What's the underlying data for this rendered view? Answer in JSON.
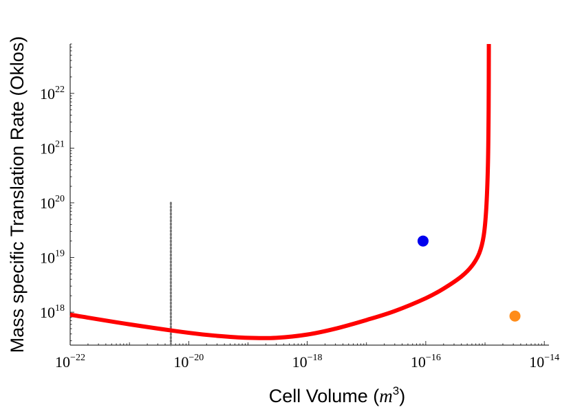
{
  "chart_data": {
    "type": "line",
    "xscale": "log",
    "yscale": "log",
    "xlim": [
      1e-22,
      1.2e-14
    ],
    "ylim": [
      2.5e+17,
      8e+22
    ],
    "xlabel": {
      "main": "Cell Volume (",
      "italic": "m",
      "sup": "3",
      "close": ")"
    },
    "ylabel": "Mass specific Translation Rate (Oklos)",
    "xticks": [
      {
        "base": "10",
        "exp": "−22",
        "value": 1e-22
      },
      {
        "base": "10",
        "exp": "−20",
        "value": 1e-20
      },
      {
        "base": "10",
        "exp": "−18",
        "value": 1e-18
      },
      {
        "base": "10",
        "exp": "−16",
        "value": 1e-16
      },
      {
        "base": "10",
        "exp": "−14",
        "value": 1e-14
      }
    ],
    "yticks": [
      {
        "base": "10",
        "exp": "18",
        "value": 1e+18
      },
      {
        "base": "10",
        "exp": "19",
        "value": 1e+19
      },
      {
        "base": "10",
        "exp": "20",
        "value": 1e+20
      },
      {
        "base": "10",
        "exp": "21",
        "value": 1e+21
      },
      {
        "base": "10",
        "exp": "22",
        "value": 1e+22
      }
    ],
    "series": [
      {
        "color": "#ff0000",
        "x": [
          1e-22,
          1e-21,
          1e-20,
          3e-20,
          1e-19,
          3e-19,
          1e-18,
          3e-18,
          1e-17,
          3e-17,
          1e-16,
          2e-16,
          4e-16,
          6e-16,
          8e-16,
          9.5e-16,
          1.05e-15,
          1.12e-15,
          1.15e-15,
          1.16e-15
        ],
        "y": [
          9e+17,
          6e+17,
          4.2e+17,
          3.7e+17,
          3.4e+17,
          3.4e+17,
          3.9e+17,
          5e+17,
          7.2e+17,
          1.05e+18,
          1.8e+18,
          2.7e+18,
          4.5e+18,
          7e+18,
          1.2e+19,
          2.5e+19,
          8e+19,
          5e+20,
          5e+21,
          8e+22
        ]
      }
    ],
    "vline": {
      "x": 5e-21,
      "y_from": 2.5e+17,
      "y_to": 1e+20,
      "color": "#777777",
      "style": "dotted"
    },
    "points": [
      {
        "x": 9e-17,
        "y": 2e+19,
        "color": "#0000ee"
      },
      {
        "x": 3.2e-15,
        "y": 8.5e+17,
        "color": "#ff8c1a"
      }
    ],
    "grid": false,
    "legend": "none"
  }
}
